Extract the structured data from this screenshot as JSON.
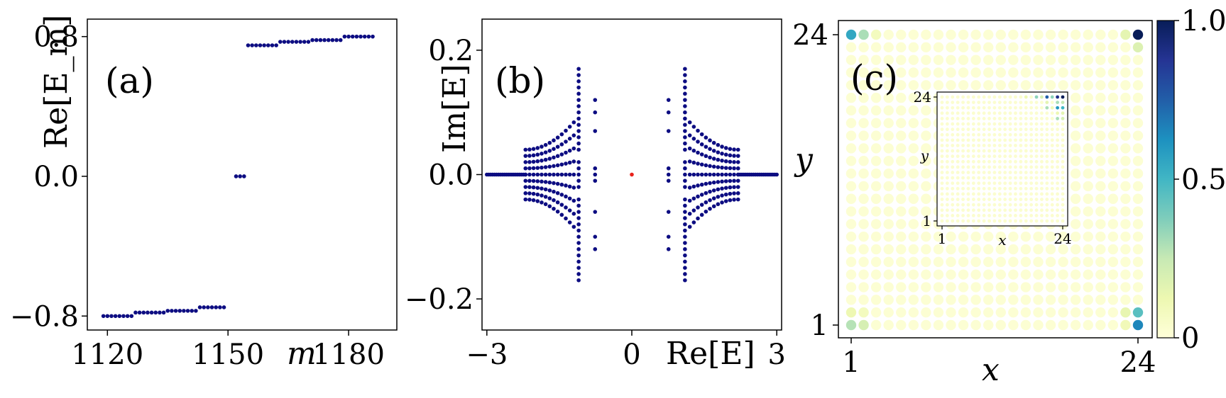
{
  "chart_data": [
    {
      "type": "scatter",
      "panel_label": "(a)",
      "xlabel": "m",
      "ylabel": "Re[E_m]",
      "xticks": [
        "1120",
        "1150",
        "1180"
      ],
      "yticks": [
        "−0.8",
        "0.0",
        "0.8"
      ],
      "xlim": [
        1115,
        1192
      ],
      "ylim": [
        -0.88,
        0.9
      ],
      "points_x": [
        1119,
        1120,
        1121,
        1122,
        1123,
        1124,
        1125,
        1126,
        1127,
        1128,
        1129,
        1130,
        1131,
        1132,
        1133,
        1134,
        1135,
        1136,
        1137,
        1138,
        1139,
        1140,
        1141,
        1142,
        1143,
        1144,
        1145,
        1146,
        1147,
        1148,
        1149,
        1152,
        1153,
        1154,
        1155,
        1156,
        1157,
        1158,
        1159,
        1160,
        1161,
        1162,
        1163,
        1164,
        1165,
        1166,
        1167,
        1168,
        1169,
        1170,
        1171,
        1172,
        1173,
        1174,
        1175,
        1176,
        1177,
        1178,
        1179,
        1180,
        1181,
        1182,
        1183,
        1184,
        1185,
        1186
      ],
      "points_y": [
        -0.8,
        -0.8,
        -0.8,
        -0.8,
        -0.8,
        -0.8,
        -0.8,
        -0.8,
        -0.78,
        -0.78,
        -0.78,
        -0.78,
        -0.78,
        -0.78,
        -0.78,
        -0.78,
        -0.77,
        -0.77,
        -0.77,
        -0.77,
        -0.77,
        -0.77,
        -0.77,
        -0.77,
        -0.75,
        -0.75,
        -0.75,
        -0.75,
        -0.75,
        -0.75,
        -0.75,
        0.0,
        0.0,
        0.0,
        0.75,
        0.75,
        0.75,
        0.75,
        0.75,
        0.75,
        0.75,
        0.75,
        0.77,
        0.77,
        0.77,
        0.77,
        0.77,
        0.77,
        0.77,
        0.77,
        0.78,
        0.78,
        0.78,
        0.78,
        0.78,
        0.78,
        0.78,
        0.78,
        0.8,
        0.8,
        0.8,
        0.8,
        0.8,
        0.8,
        0.8,
        0.8
      ],
      "color": "#0d0d82"
    },
    {
      "type": "scatter",
      "panel_label": "(b)",
      "xlabel": "Re[E]",
      "ylabel": "Im[E]",
      "xticks": [
        "−3",
        "0",
        "3"
      ],
      "yticks": [
        "−0.2",
        "0.0",
        "0.2"
      ],
      "xlim": [
        -3.1,
        3.1
      ],
      "ylim": [
        -0.25,
        0.25
      ],
      "band": {
        "re_from": 2.2,
        "re_to": 3.0,
        "im": 0.0
      },
      "fan_levels": [
        0.0,
        0.01,
        0.02,
        0.03,
        0.04
      ],
      "fan_edge": {
        "re_inner": 1.2,
        "re_outer": 2.2
      },
      "arms": [
        {
          "re": 1.1,
          "im": [
            0.17,
            0.16,
            0.15,
            0.14,
            0.13,
            0.12,
            0.11,
            0.1,
            0.09,
            0.08,
            0.07,
            0.06,
            0.05,
            0.04,
            0.02,
            0.01,
            0.0,
            -0.01,
            -0.02,
            -0.04,
            -0.05,
            -0.06,
            -0.07,
            -0.08,
            -0.09,
            -0.1,
            -0.11,
            -0.12,
            -0.13,
            -0.14,
            -0.15,
            -0.16,
            -0.17
          ]
        },
        {
          "re": 0.76,
          "im": [
            0.12,
            0.1,
            0.07,
            0.01,
            0.0,
            -0.01,
            -0.06,
            -0.1,
            -0.12
          ]
        }
      ],
      "center_point": {
        "re": 0.0,
        "im": 0.0,
        "color": "#e8221b"
      },
      "color": "#0d0d82"
    },
    {
      "type": "heatmap",
      "panel_label": "(c)",
      "xlabel": "x",
      "ylabel": "y",
      "xticks": [
        "1",
        "24"
      ],
      "yticks": [
        "1",
        "24"
      ],
      "grid_size": 24,
      "colorbar": {
        "min": 0,
        "max": 1,
        "ticks": [
          "0",
          "0.5",
          "1.0"
        ],
        "colormap": "YlGnBu"
      },
      "main_nonzero": [
        {
          "x": 1,
          "y": 24,
          "v": 0.55
        },
        {
          "x": 2,
          "y": 24,
          "v": 0.3
        },
        {
          "x": 3,
          "y": 24,
          "v": 0.08
        },
        {
          "x": 23,
          "y": 24,
          "v": 0.15
        },
        {
          "x": 24,
          "y": 24,
          "v": 1.0
        },
        {
          "x": 24,
          "y": 23,
          "v": 0.18
        },
        {
          "x": 24,
          "y": 2,
          "v": 0.45
        },
        {
          "x": 24,
          "y": 1,
          "v": 0.65
        },
        {
          "x": 23,
          "y": 2,
          "v": 0.14
        },
        {
          "x": 23,
          "y": 1,
          "v": 0.1
        },
        {
          "x": 1,
          "y": 1,
          "v": 0.28
        },
        {
          "x": 2,
          "y": 1,
          "v": 0.2
        },
        {
          "x": 1,
          "y": 2,
          "v": 0.12
        },
        {
          "x": 2,
          "y": 2,
          "v": 0.08
        }
      ],
      "inset": {
        "xticks": [
          "1",
          "x",
          "24"
        ],
        "yticks": [
          "1",
          "y",
          "24"
        ],
        "nonzero": [
          {
            "x": 24,
            "y": 24,
            "v": 1.0
          },
          {
            "x": 23,
            "y": 24,
            "v": 0.9
          },
          {
            "x": 21,
            "y": 24,
            "v": 0.75
          },
          {
            "x": 22,
            "y": 24,
            "v": 0.35
          },
          {
            "x": 19,
            "y": 24,
            "v": 0.35
          },
          {
            "x": 20,
            "y": 24,
            "v": 0.2
          },
          {
            "x": 17,
            "y": 24,
            "v": 0.12
          },
          {
            "x": 23,
            "y": 23,
            "v": 0.3
          },
          {
            "x": 24,
            "y": 23,
            "v": 0.25
          },
          {
            "x": 21,
            "y": 23,
            "v": 0.15
          },
          {
            "x": 23,
            "y": 22,
            "v": 0.6
          },
          {
            "x": 24,
            "y": 22,
            "v": 0.5
          },
          {
            "x": 21,
            "y": 22,
            "v": 0.3
          },
          {
            "x": 22,
            "y": 22,
            "v": 0.1
          },
          {
            "x": 24,
            "y": 21,
            "v": 0.15
          },
          {
            "x": 23,
            "y": 21,
            "v": 0.12
          },
          {
            "x": 23,
            "y": 20,
            "v": 0.3
          },
          {
            "x": 24,
            "y": 20,
            "v": 0.2
          }
        ]
      }
    }
  ]
}
